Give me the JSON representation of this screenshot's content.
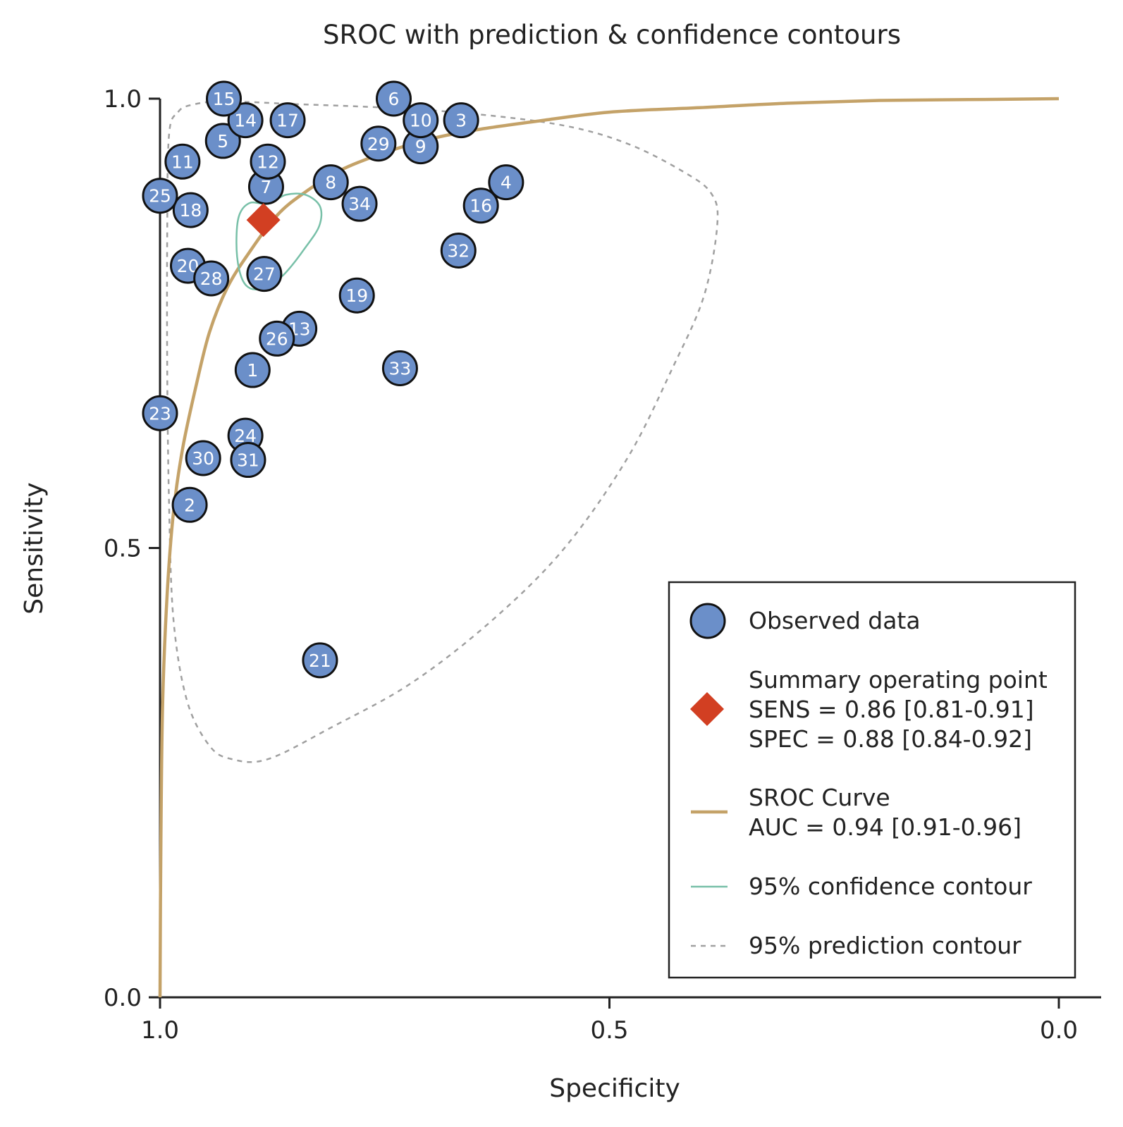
{
  "chart_data": {
    "type": "scatter",
    "title": "SROC with prediction & confidence contours",
    "xlabel": "Specificity",
    "ylabel": "Sensitivity",
    "xlim": [
      1.0,
      0.0
    ],
    "ylim": [
      0.0,
      1.0
    ],
    "x_reversed": true,
    "xticks": [
      {
        "value": 1.0,
        "label": "1.0"
      },
      {
        "value": 0.5,
        "label": "0.5"
      },
      {
        "value": 0.0,
        "label": "0.0"
      }
    ],
    "yticks": [
      {
        "value": 0.0,
        "label": "0.0"
      },
      {
        "value": 0.5,
        "label": "0.5"
      },
      {
        "value": 1.0,
        "label": "1.0"
      }
    ],
    "grid": false,
    "legend_position": "bottom-right",
    "colors": {
      "observed": "#6b8fc9",
      "summary": "#d23f22",
      "sroc": "#c4a268",
      "confidence": "#78c0a8",
      "prediction": "#a0a0a0"
    },
    "observed_data": [
      {
        "label": "1",
        "spec": 0.897,
        "sens": 0.698
      },
      {
        "label": "2",
        "spec": 0.967,
        "sens": 0.548
      },
      {
        "label": "3",
        "spec": 0.665,
        "sens": 0.976
      },
      {
        "label": "4",
        "spec": 0.615,
        "sens": 0.907
      },
      {
        "label": "5",
        "spec": 0.93,
        "sens": 0.953
      },
      {
        "label": "6",
        "spec": 0.74,
        "sens": 1.0
      },
      {
        "label": "7",
        "spec": 0.882,
        "sens": 0.902
      },
      {
        "label": "8",
        "spec": 0.81,
        "sens": 0.907
      },
      {
        "label": "9",
        "spec": 0.71,
        "sens": 0.947
      },
      {
        "label": "10",
        "spec": 0.71,
        "sens": 0.976
      },
      {
        "label": "11",
        "spec": 0.975,
        "sens": 0.93
      },
      {
        "label": "12",
        "spec": 0.88,
        "sens": 0.93
      },
      {
        "label": "13",
        "spec": 0.845,
        "sens": 0.744
      },
      {
        "label": "14",
        "spec": 0.905,
        "sens": 0.976
      },
      {
        "label": "15",
        "spec": 0.929,
        "sens": 1.0
      },
      {
        "label": "16",
        "spec": 0.643,
        "sens": 0.881
      },
      {
        "label": "17",
        "spec": 0.858,
        "sens": 0.976
      },
      {
        "label": "18",
        "spec": 0.966,
        "sens": 0.876
      },
      {
        "label": "19",
        "spec": 0.781,
        "sens": 0.781
      },
      {
        "label": "20",
        "spec": 0.969,
        "sens": 0.814
      },
      {
        "label": "21",
        "spec": 0.822,
        "sens": 0.375
      },
      {
        "label": "23",
        "spec": 1.0,
        "sens": 0.65
      },
      {
        "label": "24",
        "spec": 0.905,
        "sens": 0.625
      },
      {
        "label": "25",
        "spec": 1.0,
        "sens": 0.892
      },
      {
        "label": "26",
        "spec": 0.87,
        "sens": 0.733
      },
      {
        "label": "27",
        "spec": 0.884,
        "sens": 0.805
      },
      {
        "label": "28",
        "spec": 0.943,
        "sens": 0.8
      },
      {
        "label": "29",
        "spec": 0.757,
        "sens": 0.95
      },
      {
        "label": "30",
        "spec": 0.952,
        "sens": 0.6
      },
      {
        "label": "31",
        "spec": 0.902,
        "sens": 0.598
      },
      {
        "label": "32",
        "spec": 0.668,
        "sens": 0.831
      },
      {
        "label": "33",
        "spec": 0.733,
        "sens": 0.7
      },
      {
        "label": "34",
        "spec": 0.778,
        "sens": 0.883
      }
    ],
    "summary_point": {
      "spec": 0.885,
      "sens": 0.865
    },
    "sroc_curve": [
      [
        1.0,
        0.0
      ],
      [
        0.999,
        0.18
      ],
      [
        0.997,
        0.33
      ],
      [
        0.992,
        0.45
      ],
      [
        0.985,
        0.54
      ],
      [
        0.975,
        0.61
      ],
      [
        0.96,
        0.68
      ],
      [
        0.945,
        0.74
      ],
      [
        0.925,
        0.79
      ],
      [
        0.9,
        0.83
      ],
      [
        0.87,
        0.87
      ],
      [
        0.84,
        0.895
      ],
      [
        0.8,
        0.92
      ],
      [
        0.75,
        0.94
      ],
      [
        0.7,
        0.955
      ],
      [
        0.65,
        0.965
      ],
      [
        0.58,
        0.975
      ],
      [
        0.5,
        0.985
      ],
      [
        0.4,
        0.99
      ],
      [
        0.3,
        0.995
      ],
      [
        0.2,
        0.998
      ],
      [
        0.1,
        0.999
      ],
      [
        0.0,
        1.0
      ]
    ],
    "confidence_contour": [
      [
        0.88,
        0.883
      ],
      [
        0.86,
        0.893
      ],
      [
        0.838,
        0.893
      ],
      [
        0.822,
        0.88
      ],
      [
        0.823,
        0.858
      ],
      [
        0.84,
        0.832
      ],
      [
        0.857,
        0.81
      ],
      [
        0.87,
        0.798
      ],
      [
        0.89,
        0.788
      ],
      [
        0.904,
        0.792
      ],
      [
        0.912,
        0.81
      ],
      [
        0.915,
        0.84
      ],
      [
        0.912,
        0.87
      ],
      [
        0.9,
        0.884
      ],
      [
        0.88,
        0.883
      ]
    ],
    "prediction_contour": [
      [
        0.98,
        0.985
      ],
      [
        0.965,
        0.993
      ],
      [
        0.93,
        0.997
      ],
      [
        0.85,
        0.994
      ],
      [
        0.75,
        0.99
      ],
      [
        0.65,
        0.983
      ],
      [
        0.55,
        0.97
      ],
      [
        0.48,
        0.95
      ],
      [
        0.42,
        0.92
      ],
      [
        0.387,
        0.895
      ],
      [
        0.38,
        0.86
      ],
      [
        0.395,
        0.78
      ],
      [
        0.43,
        0.7
      ],
      [
        0.48,
        0.6
      ],
      [
        0.55,
        0.5
      ],
      [
        0.63,
        0.42
      ],
      [
        0.72,
        0.35
      ],
      [
        0.81,
        0.3
      ],
      [
        0.88,
        0.265
      ],
      [
        0.92,
        0.265
      ],
      [
        0.945,
        0.28
      ],
      [
        0.97,
        0.33
      ],
      [
        0.985,
        0.42
      ],
      [
        0.99,
        0.55
      ],
      [
        0.992,
        0.7
      ],
      [
        0.992,
        0.85
      ],
      [
        0.99,
        0.96
      ],
      [
        0.98,
        0.985
      ]
    ],
    "legend": {
      "observed": "Observed data",
      "summary_lines": [
        "Summary operating point",
        "SENS = 0.86 [0.81-0.91]",
        "SPEC = 0.88 [0.84-0.92]"
      ],
      "sroc_lines": [
        "SROC Curve",
        "AUC = 0.94 [0.91-0.96]"
      ],
      "confidence": "95% confidence contour",
      "prediction": "95% prediction contour"
    }
  }
}
